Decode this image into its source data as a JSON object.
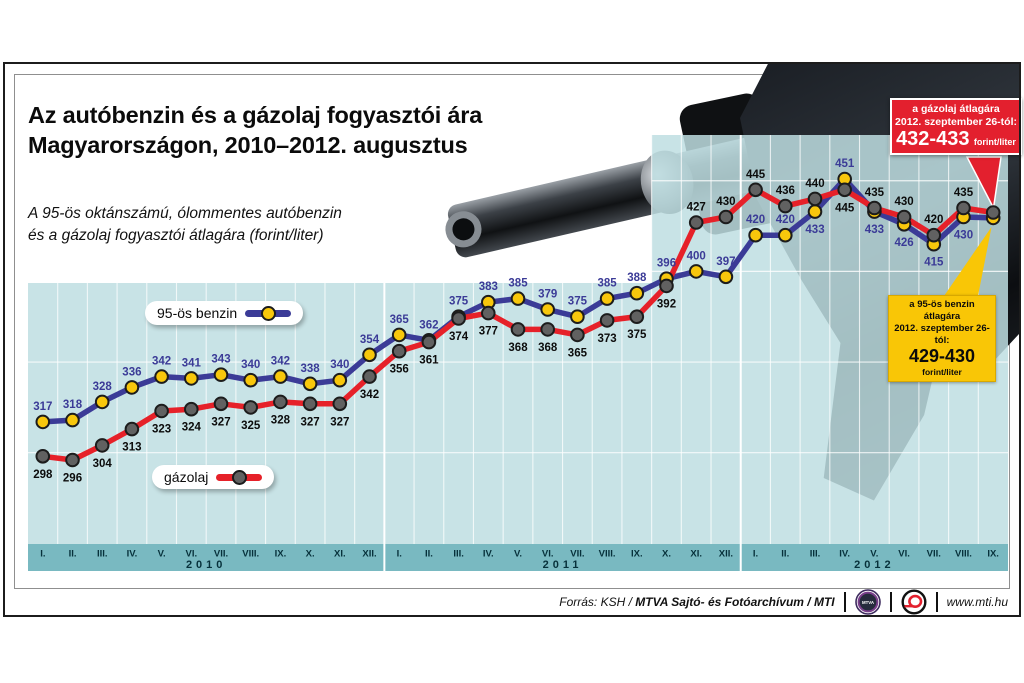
{
  "header": {
    "title_line1": "Az autóbenzin és a gázolaj fogyasztói ára",
    "title_line2": "Magyarországon, 2010–2012. augusztus",
    "subtitle_line1": "A 95-ös oktánszámú, ólommentes autóbenzin",
    "subtitle_line2": "és a gázolaj fogyasztói átlagára (forint/liter)"
  },
  "legend": {
    "benzin": "95-ös benzin",
    "gazolaj": "gázolaj"
  },
  "callouts": {
    "diesel": {
      "line1": "a gázolaj átlagára",
      "line2": "2012. szeptember 26-tól:",
      "value": "432-433",
      "unit": "forint/liter",
      "bg": "#e3202e"
    },
    "petrol": {
      "line1": "a 95-ös benzin átlagára",
      "line2": "2012. szeptember 26-tól:",
      "value": "429-430",
      "unit": "forint/liter",
      "bg": "#f9c606"
    }
  },
  "footer": {
    "source_normal": "Forrás: KSH / ",
    "source_bold": "MTVA Sajtó- és Fotóarchívum / MTI",
    "mtva_logo_text": "MTVA",
    "url": "www.mti.hu"
  },
  "chart_data": {
    "type": "line",
    "title": "Az autóbenzin és a gázolaj fogyasztói ára Magyarországon, 2010–2012. augusztus",
    "ylabel": "forint/liter",
    "ylim": [
      250,
      475
    ],
    "gridline_values": [
      300,
      350,
      400,
      450
    ],
    "grid": "on",
    "panel_fill": "rgba(190,222,226,0.85)",
    "axis_band_fill": "#79b9c1",
    "axis_text_color": "#07313b",
    "years": [
      {
        "label": "2010",
        "months": [
          "I.",
          "II.",
          "III.",
          "IV.",
          "V.",
          "VI.",
          "VII.",
          "VIII.",
          "IX.",
          "X.",
          "XI.",
          "XII."
        ]
      },
      {
        "label": "2011",
        "months": [
          "I.",
          "II.",
          "III.",
          "IV.",
          "V.",
          "VI.",
          "VII.",
          "VIII.",
          "IX.",
          "X.",
          "XI.",
          "XII."
        ]
      },
      {
        "label": "2012",
        "months": [
          "I.",
          "II.",
          "III.",
          "IV.",
          "V.",
          "VI.",
          "VII.",
          "VIII.",
          "IX."
        ]
      }
    ],
    "series": [
      {
        "name": "95-ös benzin",
        "line_color": "#3b3b97",
        "marker_fill": "#f8c70c",
        "label_color": "#3b3b97",
        "values": [
          317,
          318,
          328,
          336,
          342,
          341,
          343,
          340,
          342,
          338,
          340,
          354,
          365,
          362,
          375,
          383,
          385,
          379,
          375,
          385,
          388,
          396,
          400,
          397,
          420,
          420,
          433,
          451,
          433,
          426,
          415,
          430,
          429.5
        ],
        "labels": [
          "317",
          "318",
          "328",
          "336",
          "342",
          "341",
          "343",
          "340",
          "342",
          "338",
          "340",
          "354",
          "365",
          "362",
          "375",
          "383",
          "385",
          "379",
          "375",
          "385",
          "388",
          "396",
          "400",
          "397",
          "420",
          "420",
          "433",
          "451",
          "433",
          "426",
          "415",
          "430",
          ""
        ],
        "label_sides": [
          "a",
          "a",
          "a",
          "a",
          "a",
          "a",
          "a",
          "a",
          "a",
          "a",
          "a",
          "a",
          "a",
          "a",
          "a",
          "a",
          "a",
          "a",
          "a",
          "a",
          "a",
          "a",
          "a",
          "a",
          "a",
          "a",
          "b",
          "a",
          "b",
          "b",
          "b",
          "b",
          ""
        ]
      },
      {
        "name": "gázolaj",
        "line_color": "#e62129",
        "marker_fill": "#616161",
        "label_color": "#0c0c0c",
        "values": [
          298,
          296,
          304,
          313,
          323,
          324,
          327,
          325,
          328,
          327,
          327,
          342,
          356,
          361,
          374,
          377,
          368,
          368,
          365,
          373,
          375,
          392,
          427,
          430,
          445,
          436,
          440,
          445,
          435,
          430,
          420,
          435,
          432.5
        ],
        "labels": [
          "298",
          "296",
          "304",
          "313",
          "323",
          "324",
          "327",
          "325",
          "328",
          "327",
          "327",
          "342",
          "356",
          "361",
          "374",
          "377",
          "368",
          "368",
          "365",
          "373",
          "375",
          "392",
          "427",
          "430",
          "445",
          "436",
          "440",
          "445",
          "435",
          "430",
          "420",
          "435",
          ""
        ],
        "label_sides": [
          "b",
          "b",
          "b",
          "b",
          "b",
          "b",
          "b",
          "b",
          "b",
          "b",
          "b",
          "b",
          "b",
          "b",
          "b",
          "b",
          "b",
          "b",
          "b",
          "b",
          "b",
          "b",
          "a",
          "a",
          "a",
          "a",
          "a",
          "b",
          "a",
          "a",
          "a",
          "a",
          ""
        ]
      }
    ],
    "final_announced": {
      "benzin": "429-430",
      "gazolaj": "432-433",
      "effective": "2012. szeptember 26-tól"
    }
  }
}
